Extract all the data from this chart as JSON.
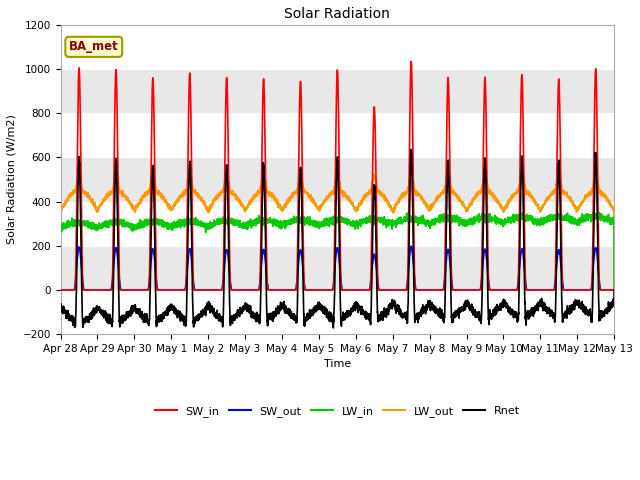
{
  "title": "Solar Radiation",
  "xlabel": "Time",
  "ylabel": "Solar Radiation (W/m2)",
  "ylim": [
    -200,
    1200
  ],
  "yticks": [
    -200,
    0,
    200,
    400,
    600,
    800,
    1000,
    1200
  ],
  "fig_bg": "#ffffff",
  "plot_bg": "#e8e8e8",
  "grid_color": "#ffffff",
  "legend_label": "BA_met",
  "series": {
    "SW_in": {
      "color": "#ff0000",
      "lw": 1.2
    },
    "SW_out": {
      "color": "#0000ff",
      "lw": 1.2
    },
    "LW_in": {
      "color": "#00cc00",
      "lw": 1.2
    },
    "LW_out": {
      "color": "#ff9900",
      "lw": 1.2
    },
    "Rnet": {
      "color": "#000000",
      "lw": 1.2
    }
  },
  "num_days": 15,
  "pts_per_day": 288,
  "date_labels": [
    "Apr 28",
    "Apr 29",
    "Apr 30",
    "May 1",
    "May 2",
    "May 3",
    "May 4",
    "May 5",
    "May 6",
    "May 7",
    "May 8",
    "May 9",
    "May 10",
    "May 11",
    "May 12",
    "May 13"
  ],
  "date_tick_days": [
    0,
    1,
    2,
    3,
    4,
    5,
    6,
    7,
    8,
    9,
    10,
    11,
    12,
    13,
    14,
    15
  ],
  "sw_in_peaks": [
    1005,
    998,
    960,
    980,
    960,
    955,
    945,
    995,
    830,
    1035,
    960,
    960,
    975,
    955,
    1000
  ],
  "sw_out_ratio": 0.19,
  "lw_in_base": 280,
  "lw_out_base": 360
}
